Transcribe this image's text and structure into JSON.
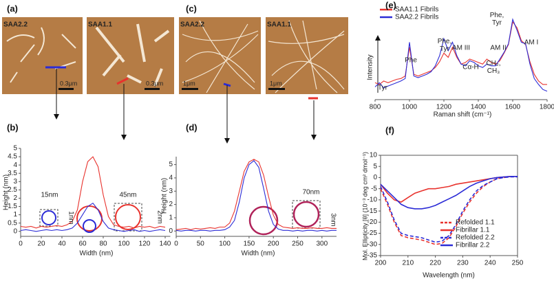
{
  "panel_labels": [
    "(a)",
    "(b)",
    "(c)",
    "(d)",
    "(e)",
    "(f)"
  ],
  "afm_images": [
    {
      "label": "SAA2.2",
      "scale": "0.3μm"
    },
    {
      "label": "SAA1.1",
      "scale": "0.3μm"
    },
    {
      "label": "SAA2.2",
      "scale": "1μm"
    },
    {
      "label": "SAA1.1",
      "scale": "1μm"
    }
  ],
  "chart_data": [
    {
      "type": "line",
      "xlabel": "Width (nm)",
      "ylabel": "Height (nm)",
      "x": [
        0,
        5,
        10,
        15,
        20,
        25,
        30,
        35,
        40,
        45,
        50,
        55,
        60,
        65,
        70,
        75,
        80,
        85,
        90,
        95,
        100,
        105,
        110,
        115,
        120,
        125,
        130,
        135,
        140
      ],
      "series": [
        {
          "color": "#e8322d",
          "values": [
            0.3,
            0.25,
            0.3,
            0.2,
            0.3,
            0.25,
            0.3,
            0.35,
            0.3,
            0.4,
            0.6,
            1.3,
            3.0,
            4.2,
            4.5,
            3.9,
            2.2,
            0.9,
            0.4,
            0.3,
            0.25,
            0.3,
            0.2,
            0.3,
            0.25,
            0.3,
            0.2,
            0.3,
            0.25
          ]
        },
        {
          "color": "#2b2bd6",
          "values": [
            0.05,
            0.1,
            0.05,
            0.0,
            0.05,
            0.1,
            0.05,
            0.1,
            0.05,
            0.1,
            0.2,
            0.5,
            1.0,
            1.5,
            1.7,
            1.3,
            0.6,
            0.2,
            0.1,
            0.05,
            0.0,
            0.05,
            0.1,
            0.0,
            0.05,
            0.0,
            0.05,
            0.1,
            0.05
          ]
        }
      ],
      "xlim": [
        0,
        145
      ],
      "xticks": [
        0,
        20,
        40,
        60,
        80,
        100,
        120,
        140
      ],
      "ylim": [
        -0.3,
        5
      ],
      "yticks": [
        0,
        0.5,
        1,
        1.5,
        2,
        2.5,
        3,
        3.5,
        4,
        4.5,
        5
      ],
      "annotations": [
        "15nm",
        "1nm",
        "45nm",
        "2nm"
      ]
    },
    {
      "type": "line",
      "xlabel": "Width (nm)",
      "ylabel": "Height (nm)",
      "x": [
        0,
        10,
        20,
        30,
        40,
        50,
        60,
        70,
        80,
        90,
        100,
        110,
        120,
        130,
        140,
        150,
        160,
        170,
        180,
        190,
        200,
        210,
        220,
        230,
        240,
        250,
        260,
        270,
        280,
        290,
        300,
        310,
        320,
        330
      ],
      "series": [
        {
          "color": "#e8322d",
          "values": [
            0.1,
            0.15,
            0.2,
            0.1,
            0.2,
            0.15,
            0.2,
            0.25,
            0.2,
            0.3,
            0.3,
            0.6,
            1.5,
            3.0,
            4.5,
            5.2,
            5.4,
            5.2,
            4.2,
            2.6,
            1.2,
            0.5,
            0.3,
            0.25,
            0.2,
            0.25,
            0.2,
            0.2,
            0.25,
            0.2,
            0.2,
            0.25,
            0.2,
            0.2
          ]
        },
        {
          "color": "#2b2bd6",
          "values": [
            0.05,
            0.0,
            0.05,
            0.05,
            0.0,
            0.05,
            0.05,
            0.0,
            0.05,
            0.05,
            0.1,
            0.3,
            0.8,
            2.2,
            4.0,
            5.0,
            5.3,
            4.8,
            3.2,
            1.5,
            0.5,
            0.15,
            0.05,
            0.05,
            0.0,
            0.05,
            0.0,
            0.05,
            0.05,
            0.0,
            0.05,
            0.0,
            0.05,
            0.05
          ]
        }
      ],
      "xlim": [
        0,
        330
      ],
      "xticks": [
        0,
        50,
        100,
        150,
        200,
        250,
        300
      ],
      "ylim": [
        -0.4,
        5.6
      ],
      "yticks": [
        0,
        1,
        2,
        3,
        4,
        5
      ],
      "annotations": [
        "70nm",
        "3nm"
      ]
    },
    {
      "type": "line",
      "xlabel": "Raman shift (cm⁻¹)",
      "ylabel": "Intensity",
      "x": [
        800,
        825,
        850,
        875,
        900,
        925,
        950,
        975,
        1000,
        1025,
        1050,
        1075,
        1100,
        1125,
        1150,
        1175,
        1200,
        1225,
        1250,
        1275,
        1300,
        1325,
        1350,
        1375,
        1400,
        1425,
        1450,
        1475,
        1500,
        1525,
        1550,
        1575,
        1600,
        1625,
        1650,
        1675,
        1700,
        1725,
        1750,
        1775,
        1800
      ],
      "series": [
        {
          "name": "SAA1.1 Fibrils",
          "color": "#e8322d",
          "values": [
            20,
            18,
            22,
            20,
            22,
            24,
            25,
            28,
            62,
            30,
            28,
            30,
            32,
            34,
            38,
            45,
            55,
            50,
            62,
            50,
            42,
            44,
            48,
            46,
            44,
            42,
            48,
            44,
            42,
            46,
            55,
            65,
            92,
            85,
            70,
            65,
            45,
            30,
            22,
            18,
            18
          ]
        },
        {
          "name": "SAA2.2 Fibrils",
          "color": "#2b2bd6",
          "values": [
            15,
            20,
            14,
            16,
            18,
            20,
            22,
            25,
            68,
            28,
            26,
            28,
            30,
            33,
            40,
            52,
            72,
            58,
            68,
            52,
            42,
            40,
            46,
            44,
            40,
            38,
            42,
            40,
            40,
            48,
            56,
            66,
            95,
            82,
            68,
            66,
            42,
            25,
            18,
            12,
            10
          ]
        }
      ],
      "xlim": [
        800,
        1800
      ],
      "xticks": [
        800,
        1000,
        1200,
        1400,
        1600,
        1800
      ],
      "ylim": [
        0,
        100
      ],
      "annotations": [
        "Tyr",
        "Phe",
        "Phe, Tyr",
        "AM III",
        "Cα-H",
        "CH₂, CH₃",
        "AM II",
        "Phe, Tyr",
        "AM I"
      ]
    },
    {
      "type": "line",
      "xlabel": "Wavelength (nm)",
      "ylabel": "Mol. Ellipticity [θ] (10⁻³ deg cm² dmol⁻¹)",
      "x": [
        200,
        202.5,
        205,
        207.5,
        210,
        212.5,
        215,
        217.5,
        220,
        222.5,
        225,
        227.5,
        230,
        232.5,
        235,
        237.5,
        240,
        242.5,
        245,
        247.5,
        250
      ],
      "series": [
        {
          "name": "Refolded 1.1",
          "color": "#e8322d",
          "dash": true,
          "values": [
            -5,
            -12,
            -20,
            -26,
            -27,
            -27.5,
            -28,
            -29,
            -30,
            -29.5,
            -27,
            -22,
            -16,
            -11,
            -7,
            -4,
            -2,
            -0.5,
            0,
            0.5,
            0.5
          ]
        },
        {
          "name": "Fibrillar 1.1",
          "color": "#e8322d",
          "dash": false,
          "values": [
            -3,
            -7,
            -10,
            -11,
            -9,
            -7,
            -6,
            -5,
            -5,
            -4.5,
            -4,
            -3,
            -2.5,
            -2,
            -1.5,
            -1,
            -0.5,
            0,
            0.3,
            0.5,
            0.5
          ]
        },
        {
          "name": "Refolded 2.2",
          "color": "#2b2bd6",
          "dash": true,
          "values": [
            -4,
            -11,
            -19,
            -25,
            -26,
            -26.5,
            -27,
            -28,
            -29,
            -28.5,
            -26,
            -21,
            -15,
            -10,
            -6,
            -3.5,
            -2,
            -0.5,
            0,
            0.3,
            0.3
          ]
        },
        {
          "name": "Fibrillar 2.2",
          "color": "#2b2bd6",
          "dash": false,
          "values": [
            -3,
            -6,
            -9,
            -12,
            -13.5,
            -14,
            -14,
            -13.5,
            -12.5,
            -11,
            -9.5,
            -8,
            -6,
            -4,
            -2.5,
            -1.5,
            -0.5,
            0,
            0.3,
            0.5,
            0.5
          ]
        }
      ],
      "xlim": [
        200,
        250
      ],
      "xticks": [
        200,
        210,
        220,
        230,
        240,
        250
      ],
      "ylim": [
        -35,
        10
      ],
      "yticks": [
        -35,
        -30,
        -25,
        -20,
        -15,
        -10,
        -5,
        0,
        5,
        10
      ]
    }
  ]
}
